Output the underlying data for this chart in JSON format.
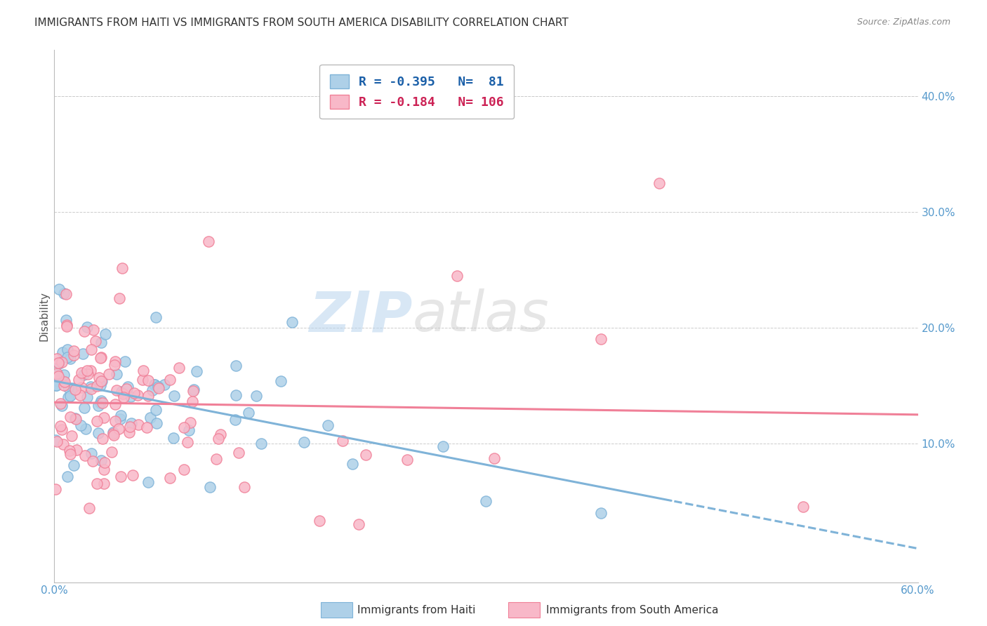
{
  "title": "IMMIGRANTS FROM HAITI VS IMMIGRANTS FROM SOUTH AMERICA DISABILITY CORRELATION CHART",
  "source": "Source: ZipAtlas.com",
  "ylabel": "Disability",
  "xlim": [
    0.0,
    0.6
  ],
  "ylim": [
    -0.02,
    0.44
  ],
  "haiti_color": "#7fb3d8",
  "haiti_color_fill": "#aed0e8",
  "south_america_color": "#f08098",
  "south_america_color_fill": "#f8b8c8",
  "haiti_R": -0.395,
  "haiti_N": 81,
  "south_america_R": -0.184,
  "south_america_N": 106,
  "legend_label_haiti": "Immigrants from Haiti",
  "legend_label_sa": "Immigrants from South America",
  "watermark_zip": "ZIP",
  "watermark_atlas": "atlas",
  "background_color": "#ffffff",
  "grid_color": "#cccccc",
  "title_color": "#333333",
  "source_color": "#888888",
  "axis_label_color": "#5599cc",
  "bottom_label_color": "#333333"
}
